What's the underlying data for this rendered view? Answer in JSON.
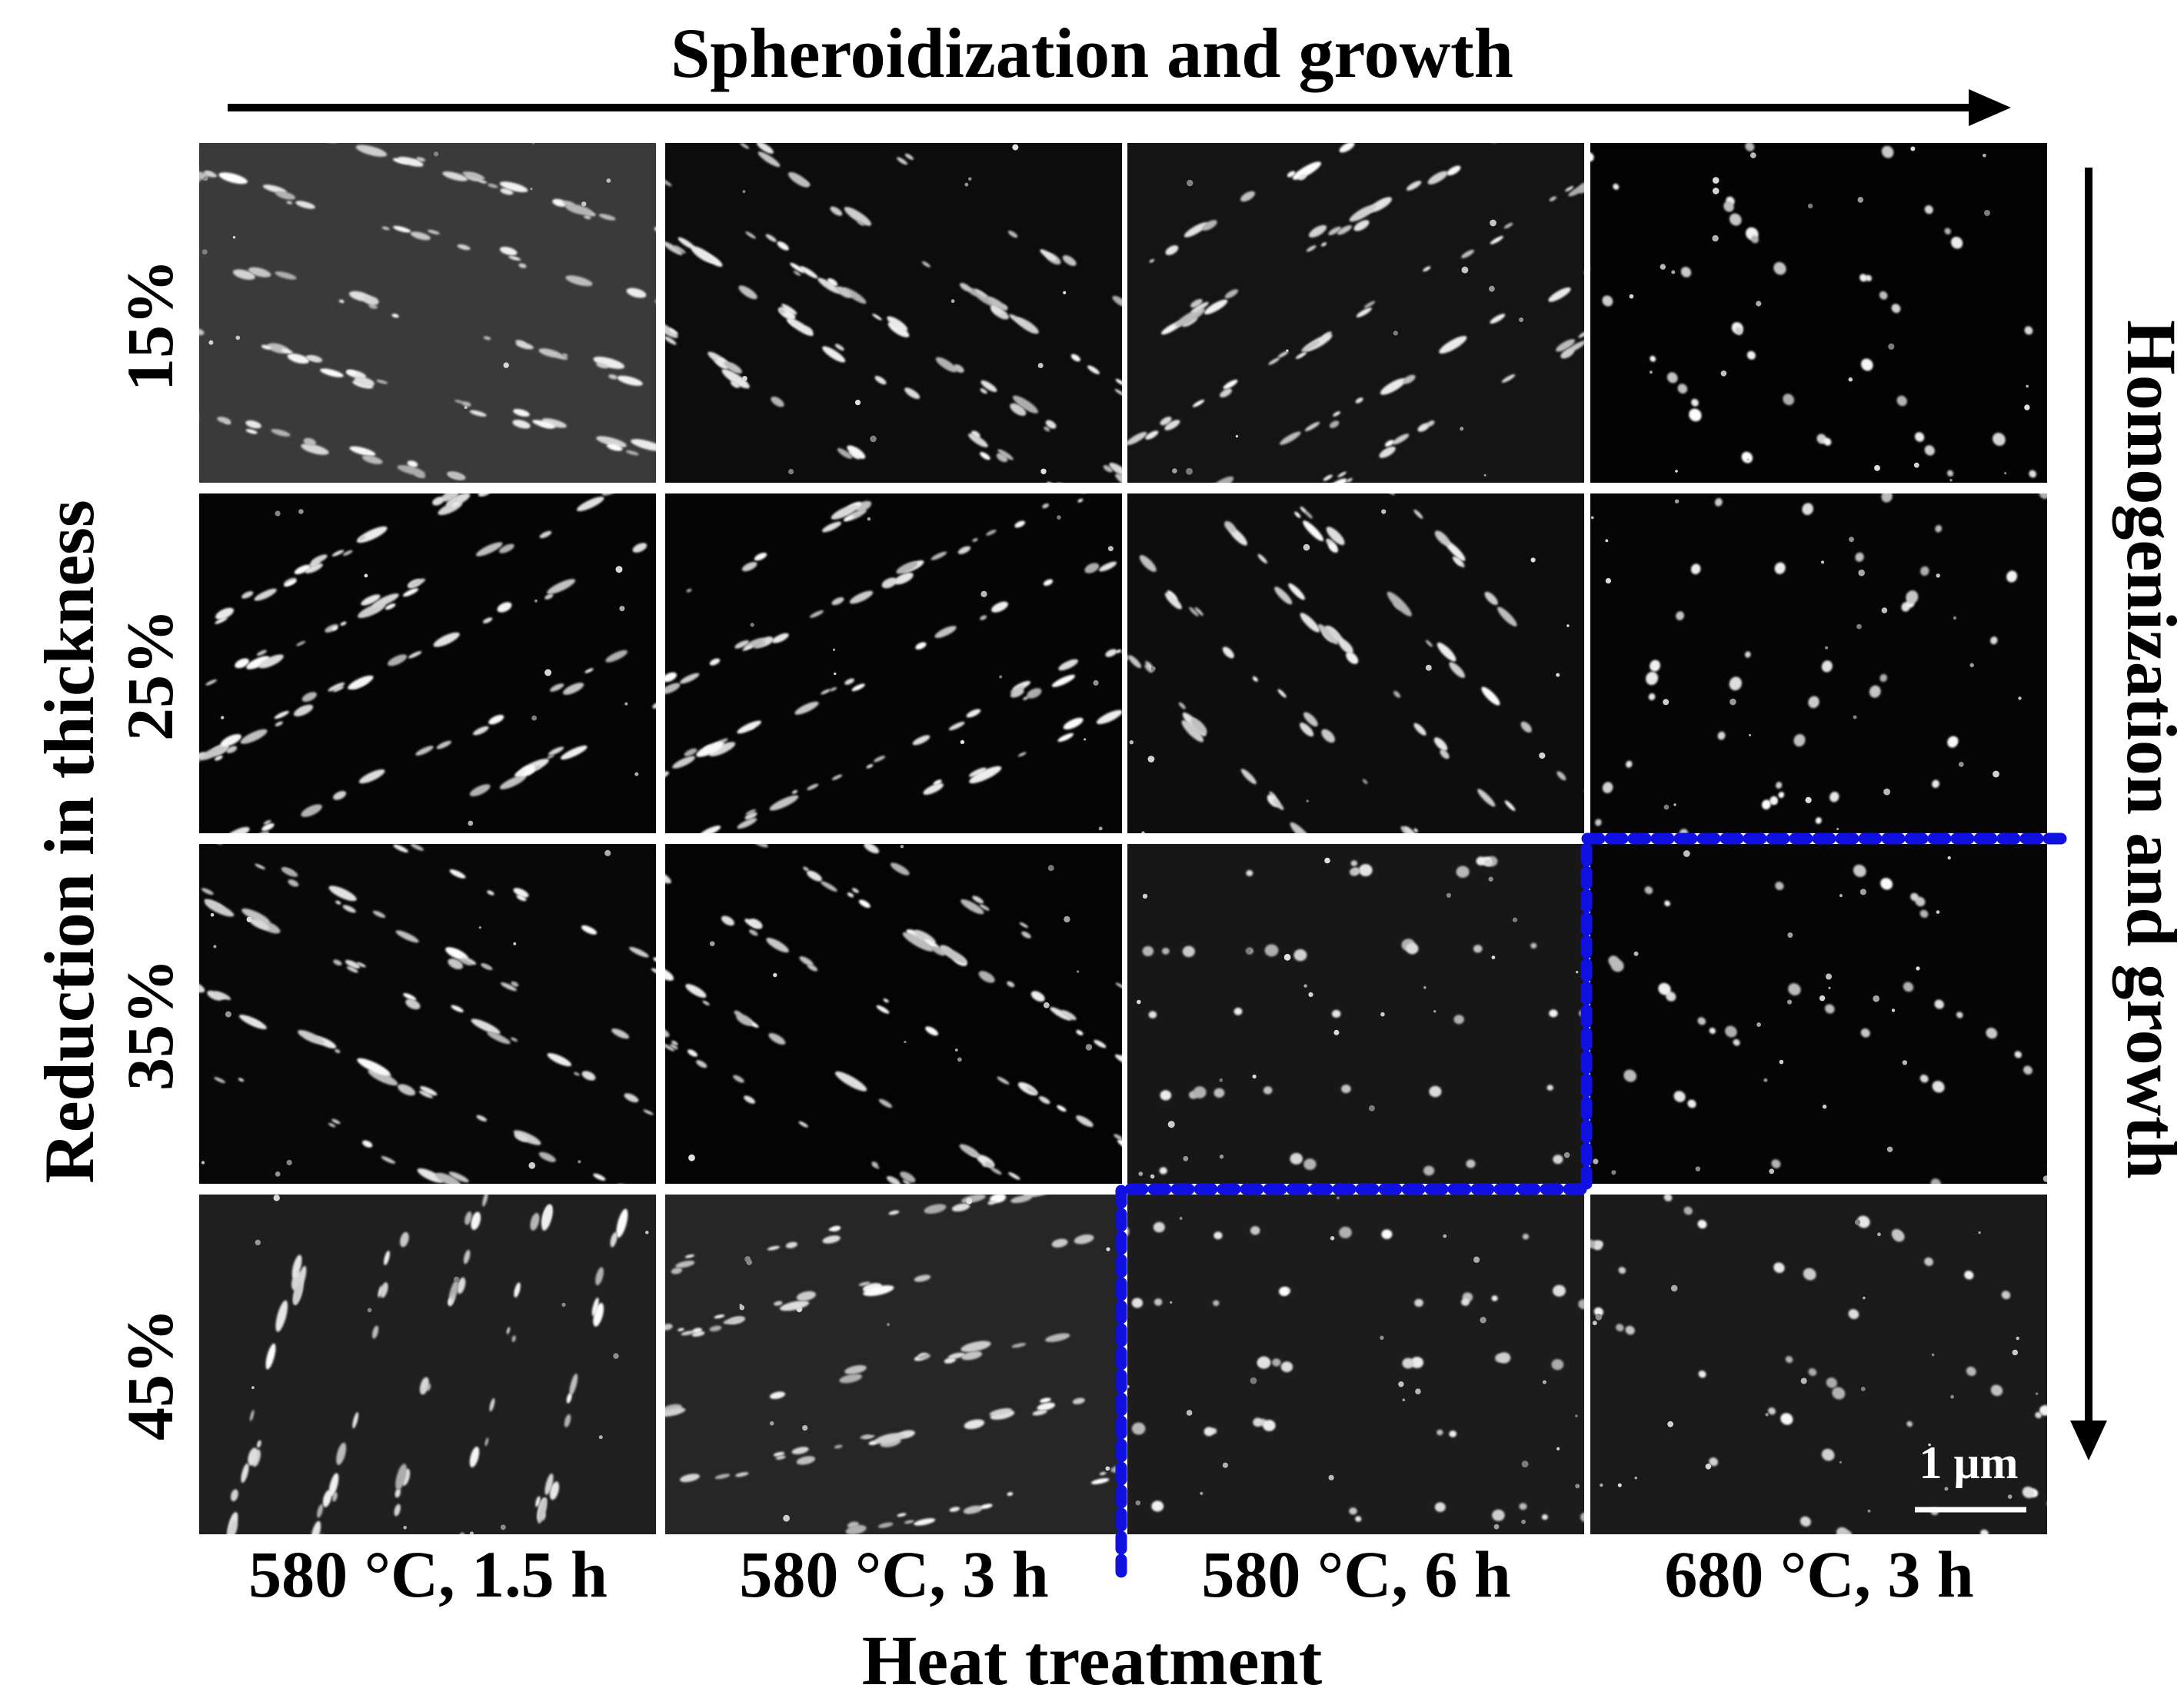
{
  "figure": {
    "top_axis_title": "Spheroidization and growth",
    "bottom_axis_title": "Heat treatment",
    "left_axis_title": "Reduction in thickness",
    "right_axis_title": "Homogenization and growth",
    "columns": [
      "580 °C, 1.5 h",
      "580 °C, 3 h",
      "580 °C, 6 h",
      "680 °C, 3 h"
    ],
    "rows": [
      "15%",
      "25%",
      "35%",
      "45%"
    ],
    "scale_bar": "1 μm",
    "colors": {
      "boundary": "#1010e0",
      "arrow": "#000000",
      "micrograph_bg": "#050505"
    }
  }
}
